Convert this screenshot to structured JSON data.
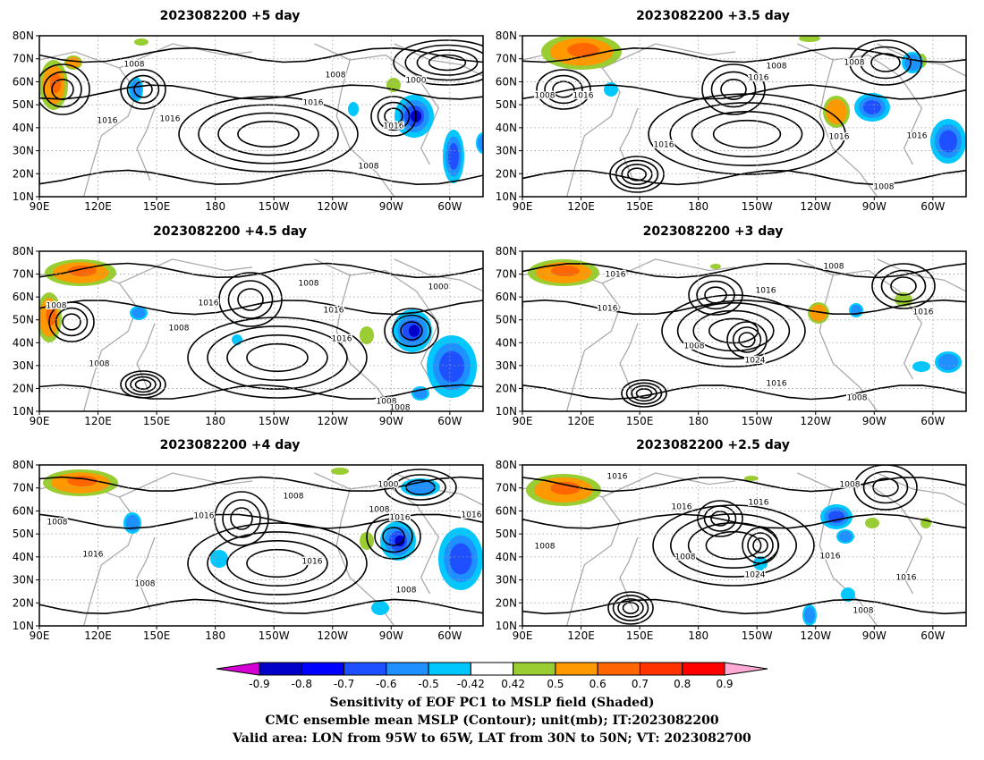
{
  "panels": [
    {
      "title": "2023082200  +5 day",
      "contour_labels": [
        [
          "1008",
          150,
          72
        ],
        [
          "1016",
          120,
          135
        ],
        [
          "1016",
          190,
          133
        ],
        [
          "1016",
          350,
          115
        ],
        [
          "1008",
          375,
          84
        ],
        [
          "1000",
          465,
          90
        ],
        [
          "1016",
          440,
          141
        ],
        [
          "1008",
          412,
          186
        ]
      ],
      "highs": [
        [
          300,
          150,
          100,
          42
        ],
        [
          500,
          70,
          60,
          25
        ]
      ],
      "lows": [
        [
          70,
          100,
          30,
          28
        ],
        [
          160,
          100,
          25,
          22
        ],
        [
          440,
          130,
          25,
          22
        ]
      ],
      "warm": [
        [
          60,
          95,
          16,
          28,
          3
        ],
        [
          82,
          70,
          10,
          8,
          2
        ],
        [
          158,
          47,
          8,
          4,
          1
        ],
        [
          440,
          95,
          8,
          8,
          1
        ]
      ],
      "cool": [
        [
          463,
          130,
          22,
          24,
          4
        ],
        [
          507,
          175,
          12,
          30,
          3
        ],
        [
          152,
          100,
          8,
          14,
          2
        ],
        [
          540,
          160,
          8,
          12,
          2
        ],
        [
          395,
          122,
          6,
          8,
          1
        ]
      ]
    },
    {
      "title": "2023082200  +3.5 day",
      "contour_labels": [
        [
          "1008",
          868,
          74
        ],
        [
          "1016",
          848,
          87
        ],
        [
          "1008",
          955,
          70
        ],
        [
          "1008",
          609,
          107
        ],
        [
          "1016",
          652,
          107
        ],
        [
          "1016",
          742,
          162
        ],
        [
          "1016",
          938,
          153
        ],
        [
          "1016",
          1025,
          152
        ],
        [
          "1008",
          988,
          209
        ]
      ],
      "highs": [
        [
          835,
          150,
          110,
          45
        ],
        [
          712,
          195,
          30,
          20
        ]
      ],
      "lows": [
        [
          820,
          100,
          35,
          28
        ],
        [
          630,
          100,
          30,
          22
        ],
        [
          990,
          70,
          40,
          25
        ]
      ],
      "warm": [
        [
          650,
          58,
          45,
          20,
          3
        ],
        [
          905,
          43,
          12,
          4,
          1
        ],
        [
          935,
          125,
          15,
          18,
          2
        ],
        [
          1030,
          68,
          6,
          8,
          1
        ]
      ],
      "cool": [
        [
          975,
          120,
          20,
          16,
          3
        ],
        [
          1060,
          158,
          20,
          25,
          3
        ],
        [
          1020,
          70,
          12,
          12,
          2
        ],
        [
          683,
          100,
          8,
          8,
          1
        ]
      ]
    },
    {
      "title": "2023082200  +4.5 day",
      "contour_labels": [
        [
          "1008",
          63,
          342
        ],
        [
          "1016",
          233,
          339
        ],
        [
          "1008",
          200,
          367
        ],
        [
          "1008",
          345,
          317
        ],
        [
          "1016",
          373,
          347
        ],
        [
          "1016",
          382,
          379
        ],
        [
          "1000",
          490,
          321
        ],
        [
          "1008",
          111,
          407
        ],
        [
          "1008",
          432,
          449
        ],
        [
          "1008",
          447,
          456
        ]
      ],
      "highs": [
        [
          310,
          400,
          100,
          45
        ],
        [
          160,
          430,
          25,
          15
        ]
      ],
      "lows": [
        [
          280,
          335,
          35,
          30
        ],
        [
          80,
          360,
          25,
          22
        ],
        [
          460,
          370,
          30,
          25
        ]
      ],
      "warm": [
        [
          90,
          305,
          40,
          15,
          3
        ],
        [
          55,
          355,
          14,
          28,
          3
        ],
        [
          410,
          375,
          8,
          10,
          1
        ]
      ],
      "cool": [
        [
          461,
          370,
          22,
          24,
          4
        ],
        [
          505,
          410,
          28,
          35,
          3
        ],
        [
          155,
          350,
          10,
          8,
          2
        ],
        [
          265,
          380,
          6,
          6,
          1
        ],
        [
          470,
          440,
          10,
          8,
          2
        ]
      ]
    },
    {
      "title": "2023082200  +3 day",
      "contour_labels": [
        [
          "1008",
          932,
          298
        ],
        [
          "1016",
          688,
          307
        ],
        [
          "1016",
          856,
          325
        ],
        [
          "1016",
          679,
          345
        ],
        [
          "1008",
          776,
          387
        ],
        [
          "1024",
          844,
          403
        ],
        [
          "1016",
          868,
          429
        ],
        [
          "1016",
          1032,
          349
        ],
        [
          "1008",
          958,
          445
        ]
      ],
      "highs": [
        [
          820,
          370,
          80,
          40
        ],
        [
          720,
          440,
          25,
          15
        ]
      ],
      "lows": [
        [
          800,
          330,
          30,
          22
        ],
        [
          835,
          380,
          22,
          20
        ],
        [
          1010,
          320,
          35,
          25
        ]
      ],
      "warm": [
        [
          630,
          305,
          40,
          15,
          3
        ],
        [
          915,
          350,
          12,
          12,
          2
        ],
        [
          1010,
          335,
          10,
          8,
          1
        ],
        [
          800,
          298,
          6,
          3,
          1
        ]
      ],
      "cool": [
        [
          957,
          347,
          8,
          8,
          2
        ],
        [
          1060,
          405,
          15,
          12,
          2
        ],
        [
          1030,
          410,
          10,
          6,
          1
        ]
      ]
    },
    {
      "title": "2023082200  +4 day",
      "contour_labels": [
        [
          "1008",
          328,
          555
        ],
        [
          "1016",
          228,
          577
        ],
        [
          "1016",
          104,
          620
        ],
        [
          "1008",
          64,
          584
        ],
        [
          "1008",
          162,
          653
        ],
        [
          "1016",
          349,
          628
        ],
        [
          "1000",
          434,
          542
        ],
        [
          "1008",
          424,
          570
        ],
        [
          "1016",
          447,
          579
        ],
        [
          "1016",
          527,
          576
        ],
        [
          "1008",
          454,
          660
        ]
      ],
      "highs": [
        [
          310,
          630,
          100,
          45
        ]
      ],
      "lows": [
        [
          270,
          580,
          30,
          30
        ],
        [
          440,
          600,
          30,
          25
        ],
        [
          470,
          545,
          40,
          20
        ]
      ],
      "warm": [
        [
          90,
          540,
          42,
          15,
          3
        ],
        [
          410,
          605,
          8,
          10,
          1
        ],
        [
          380,
          527,
          10,
          4,
          1
        ]
      ],
      "cool": [
        [
          445,
          605,
          20,
          22,
          4
        ],
        [
          515,
          625,
          25,
          35,
          3
        ],
        [
          470,
          545,
          22,
          10,
          2
        ],
        [
          148,
          585,
          10,
          12,
          2
        ],
        [
          245,
          625,
          10,
          10,
          1
        ],
        [
          425,
          680,
          10,
          8,
          1
        ]
      ]
    },
    {
      "title": "2023082200  +2.5 day",
      "contour_labels": [
        [
          "1016",
          690,
          533
        ],
        [
          "1008",
          950,
          542
        ],
        [
          "1016",
          762,
          567
        ],
        [
          "1016",
          848,
          562
        ],
        [
          "1008",
          609,
          611
        ],
        [
          "1008",
          766,
          623
        ],
        [
          "1024",
          844,
          643
        ],
        [
          "1016",
          928,
          622
        ],
        [
          "1016",
          1013,
          646
        ],
        [
          "1008",
          965,
          683
        ]
      ],
      "highs": [
        [
          820,
          610,
          90,
          45
        ],
        [
          705,
          680,
          25,
          18
        ]
      ],
      "lows": [
        [
          805,
          580,
          25,
          20
        ],
        [
          850,
          610,
          20,
          20
        ],
        [
          990,
          545,
          35,
          25
        ]
      ],
      "warm": [
        [
          630,
          548,
          42,
          18,
          3
        ],
        [
          1035,
          585,
          6,
          6,
          1
        ],
        [
          975,
          585,
          8,
          6,
          1
        ],
        [
          840,
          535,
          8,
          3,
          1
        ]
      ],
      "cool": [
        [
          935,
          578,
          18,
          14,
          3
        ],
        [
          945,
          600,
          10,
          8,
          2
        ],
        [
          905,
          688,
          8,
          12,
          2
        ],
        [
          948,
          665,
          8,
          8,
          1
        ],
        [
          850,
          630,
          8,
          8,
          1
        ]
      ]
    }
  ],
  "x_ticks": [
    "90E",
    "120E",
    "150E",
    "180",
    "150W",
    "120W",
    "90W",
    "60W"
  ],
  "y_ticks": [
    "80N",
    "70N",
    "60N",
    "50N",
    "40N",
    "30N",
    "20N",
    "10N"
  ],
  "colorbar": {
    "labels": [
      "-0.9",
      "-0.8",
      "-0.7",
      "-0.6",
      "-0.5",
      "-0.42",
      "0.42",
      "0.5",
      "0.6",
      "0.7",
      "0.8",
      "0.9"
    ],
    "colors": [
      "#0000c8",
      "#0000ff",
      "#1e50ff",
      "#1e90ff",
      "#00c8ff",
      "#ffffff",
      "#9acd32",
      "#ff9900",
      "#ff6600",
      "#ff3300",
      "#ff0000"
    ],
    "low_arrow_color": "#d400d4",
    "high_arrow_color": "#ffaad4"
  },
  "caption": {
    "line1": "Sensitivity of EOF PC1 to MSLP field (Shaded)",
    "line2": "CMC ensemble mean MSLP (Contour); unit(mb); IT:2023082200",
    "line3": "Valid area: LON from 95W to 65W, LAT from 30N to 50N; VT: 2023082700"
  },
  "colors": {
    "coast": "#aaaaaa",
    "contour": "#000000",
    "grid": "#9a9a9a",
    "warm_shade": "#ff9900",
    "warm_edge": "#9acd32",
    "warm_core": "#ff6600",
    "cool_shade": "#1e90ff",
    "cool_edge": "#00c8ff",
    "cool_core": "#0000c8"
  }
}
